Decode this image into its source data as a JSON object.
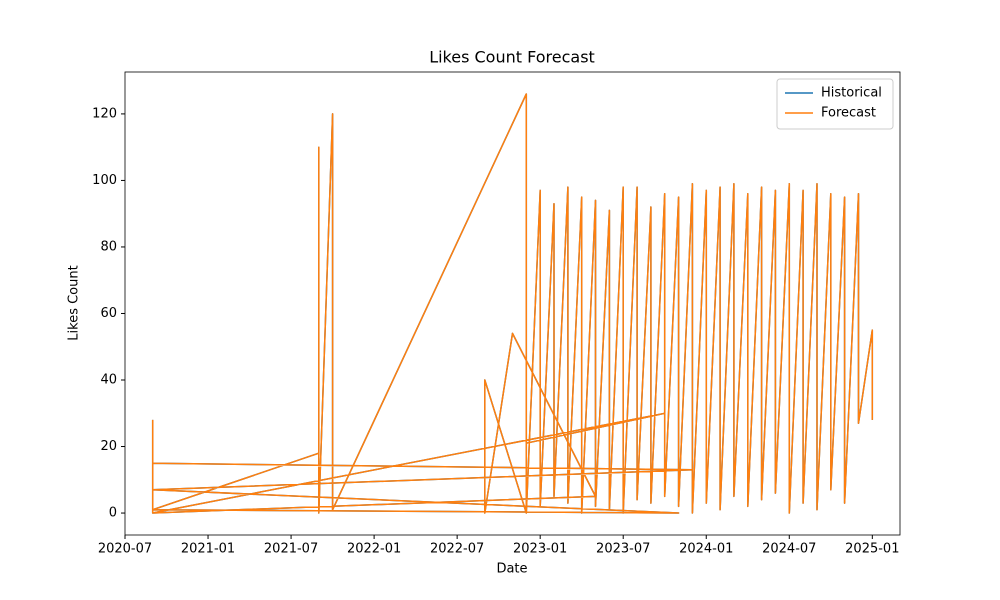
{
  "chart_data": {
    "type": "line",
    "title": "Likes Count Forecast",
    "xlabel": "Date",
    "ylabel": "Likes Count",
    "xlim": [
      "2020-07",
      "2025-03"
    ],
    "xticks": [
      "2020-07",
      "2021-01",
      "2021-07",
      "2022-01",
      "2022-07",
      "2023-01",
      "2023-07",
      "2024-01",
      "2024-07",
      "2025-01"
    ],
    "ylim": [
      -6.6,
      132.6
    ],
    "yticks": [
      0,
      20,
      40,
      60,
      80,
      100,
      120
    ],
    "legend": "upper right",
    "series": [
      {
        "name": "Historical",
        "color": "#1f77b4",
        "x": [
          "2020-09",
          "2020-09",
          "2020-09",
          "2023-12",
          "2020-09",
          "2023-11",
          "2020-09",
          "2021-09",
          "2021-09",
          "2021-09",
          "2021-10",
          "2021-10",
          "2022-12",
          "2022-12",
          "2022-09",
          "2022-09",
          "2022-11",
          "2023-05",
          "2020-09",
          "2023-10",
          "2022-12",
          "2022-12",
          "2023-01",
          "2023-01",
          "2023-02",
          "2023-02",
          "2023-03",
          "2023-03",
          "2023-04",
          "2023-04",
          "2023-05",
          "2023-05",
          "2023-06",
          "2023-06",
          "2023-07",
          "2023-07",
          "2023-08",
          "2023-08",
          "2023-09",
          "2023-09",
          "2023-10",
          "2023-10",
          "2023-11",
          "2023-11",
          "2023-12",
          "2023-12",
          "2024-01",
          "2024-01",
          "2024-02",
          "2024-02",
          "2024-03",
          "2024-03",
          "2024-04",
          "2024-04",
          "2024-05",
          "2024-05",
          "2024-06",
          "2024-06",
          "2024-07",
          "2024-07",
          "2024-08",
          "2024-08",
          "2024-09",
          "2024-09",
          "2024-10",
          "2024-10",
          "2024-11",
          "2024-11",
          "2024-12",
          "2024-12",
          "2025-01",
          "2025-01"
        ],
        "values": [
          28,
          0,
          15,
          13,
          7,
          0,
          1,
          18,
          110,
          0,
          120,
          1,
          126,
          0,
          40,
          0,
          54,
          5,
          0,
          30,
          21,
          0,
          97,
          2,
          93,
          5,
          98,
          3,
          95,
          0,
          94,
          2,
          91,
          1,
          98,
          0,
          98,
          4,
          92,
          3,
          96,
          5,
          95,
          2,
          99,
          0,
          97,
          3,
          98,
          1,
          99,
          5,
          96,
          2,
          98,
          4,
          97,
          6,
          99,
          0,
          97,
          3,
          99,
          1,
          96,
          7,
          95,
          3,
          96,
          27,
          55,
          28
        ]
      },
      {
        "name": "Forecast",
        "color": "#ff7f0e",
        "x": [
          "2020-09",
          "2020-09",
          "2020-09",
          "2023-12",
          "2020-09",
          "2023-11",
          "2020-09",
          "2021-09",
          "2021-09",
          "2021-09",
          "2021-10",
          "2021-10",
          "2022-12",
          "2022-12",
          "2022-09",
          "2022-09",
          "2022-11",
          "2023-05",
          "2020-09",
          "2023-10",
          "2022-12",
          "2022-12",
          "2023-01",
          "2023-01",
          "2023-02",
          "2023-02",
          "2023-03",
          "2023-03",
          "2023-04",
          "2023-04",
          "2023-05",
          "2023-05",
          "2023-06",
          "2023-06",
          "2023-07",
          "2023-07",
          "2023-08",
          "2023-08",
          "2023-09",
          "2023-09",
          "2023-10",
          "2023-10",
          "2023-11",
          "2023-11",
          "2023-12",
          "2023-12",
          "2024-01",
          "2024-01",
          "2024-02",
          "2024-02",
          "2024-03",
          "2024-03",
          "2024-04",
          "2024-04",
          "2024-05",
          "2024-05",
          "2024-06",
          "2024-06",
          "2024-07",
          "2024-07",
          "2024-08",
          "2024-08",
          "2024-09",
          "2024-09",
          "2024-10",
          "2024-10",
          "2024-11",
          "2024-11",
          "2024-12",
          "2024-12",
          "2025-01",
          "2025-01"
        ],
        "values": [
          28,
          0,
          15,
          13,
          7,
          0,
          1,
          18,
          110,
          0,
          120,
          1,
          126,
          0,
          40,
          0,
          54,
          5,
          0,
          30,
          21,
          0,
          97,
          2,
          93,
          5,
          98,
          3,
          95,
          0,
          94,
          2,
          91,
          1,
          98,
          0,
          98,
          4,
          92,
          3,
          96,
          5,
          95,
          2,
          99,
          0,
          97,
          3,
          98,
          1,
          99,
          5,
          96,
          2,
          98,
          4,
          97,
          6,
          99,
          0,
          97,
          3,
          99,
          1,
          96,
          7,
          95,
          3,
          96,
          27,
          55,
          28
        ]
      }
    ]
  }
}
